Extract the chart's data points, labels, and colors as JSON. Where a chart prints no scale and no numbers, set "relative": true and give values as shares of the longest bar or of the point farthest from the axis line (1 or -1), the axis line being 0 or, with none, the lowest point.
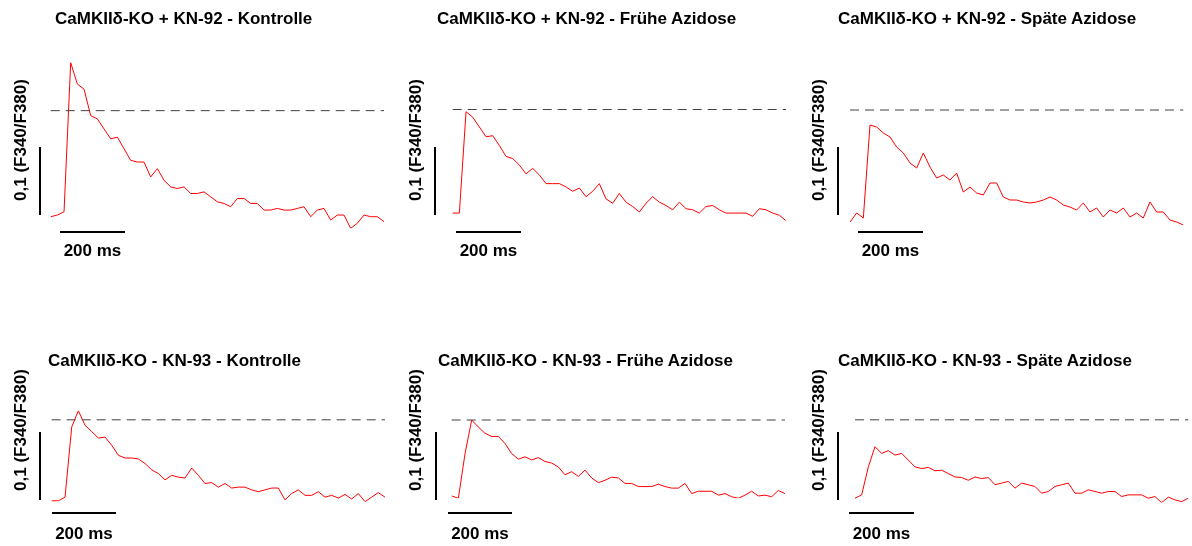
{
  "chart_data": [
    {
      "type": "line",
      "title": "CaMKIIδ-KO + KN-92 - Kontrolle",
      "xlabel": "200 ms",
      "ylabel": "0,1 (F340/F380)",
      "relative": true,
      "tick_labels": false,
      "categories": [
        null,
        null,
        null,
        null,
        null,
        null,
        null,
        null,
        null,
        null,
        null,
        null,
        null,
        null,
        null,
        null,
        null,
        null,
        null,
        null,
        null,
        null,
        null,
        null,
        null,
        null,
        null,
        null,
        null,
        null,
        null,
        null,
        null,
        null,
        null,
        null,
        null,
        null,
        null,
        null,
        null,
        null,
        null,
        null,
        null,
        null,
        null,
        null,
        null,
        null,
        null
      ],
      "series": [
        {
          "color": "#ff0000",
          "values": [
            0.07,
            0.08,
            0.1,
            1,
            0.87,
            0.84,
            0.68,
            0.66,
            0.6,
            0.54,
            0.55,
            0.48,
            0.41,
            0.4,
            0.4,
            0.31,
            0.36,
            0.29,
            0.25,
            0.24,
            0.25,
            0.21,
            0.21,
            0.22,
            0.19,
            0.16,
            0.15,
            0.13,
            0.18,
            0.18,
            0.15,
            0.15,
            0.11,
            0.11,
            0.12,
            0.11,
            0.11,
            0.12,
            0.13,
            0.07,
            0.11,
            0.12,
            0.05,
            0.08,
            0.08,
            0.0,
            0.03,
            0.08,
            0.07,
            0.07,
            0.04
          ]
        }
      ],
      "ref_lines": [
        {
          "axis": "y",
          "value": 0.71,
          "color": "#404040",
          "line_style": "dashed"
        }
      ]
    },
    {
      "type": "line",
      "title": "CaMKIIδ-KO + KN-92 - Frühe Azidose",
      "xlabel": "200 ms",
      "ylabel": "0,1 (F340/F380)",
      "relative": true,
      "tick_labels": false,
      "categories": [
        null,
        null,
        null,
        null,
        null,
        null,
        null,
        null,
        null,
        null,
        null,
        null,
        null,
        null,
        null,
        null,
        null,
        null,
        null,
        null,
        null,
        null,
        null,
        null,
        null,
        null,
        null,
        null,
        null,
        null,
        null,
        null,
        null,
        null,
        null,
        null,
        null,
        null,
        null,
        null,
        null,
        null,
        null,
        null,
        null,
        null,
        null,
        null,
        null,
        null,
        null
      ],
      "series": [
        {
          "color": "#ff0000",
          "values": [
            0.07,
            0.07,
            1,
            0.95,
            0.86,
            0.77,
            0.78,
            0.69,
            0.59,
            0.57,
            0.51,
            0.43,
            0.48,
            0.42,
            0.34,
            0.34,
            0.34,
            0.31,
            0.27,
            0.3,
            0.22,
            0.27,
            0.34,
            0.2,
            0.16,
            0.25,
            0.17,
            0.13,
            0.08,
            0.16,
            0.22,
            0.17,
            0.14,
            0.1,
            0.17,
            0.11,
            0.1,
            0.07,
            0.13,
            0.14,
            0.1,
            0.07,
            0.07,
            0.07,
            0.07,
            0.04,
            0.11,
            0.1,
            0.07,
            0.05,
            0.0
          ]
        }
      ],
      "ref_lines": [
        {
          "axis": "y",
          "value": 1.02,
          "color": "#404040",
          "line_style": "dashed"
        }
      ]
    },
    {
      "type": "line",
      "title": "CaMKIIδ-KO + KN-92 - Späte Azidose",
      "xlabel": "200 ms",
      "ylabel": "0,1 (F340/F380)",
      "relative": true,
      "tick_labels": false,
      "categories": [
        null,
        null,
        null,
        null,
        null,
        null,
        null,
        null,
        null,
        null,
        null,
        null,
        null,
        null,
        null,
        null,
        null,
        null,
        null,
        null,
        null,
        null,
        null,
        null,
        null,
        null,
        null,
        null,
        null,
        null,
        null,
        null,
        null,
        null,
        null,
        null,
        null,
        null,
        null,
        null,
        null,
        null,
        null,
        null,
        null,
        null,
        null,
        null,
        null,
        null,
        null
      ],
      "series": [
        {
          "color": "#ff0000",
          "values": [
            0.03,
            0.12,
            0.07,
            1,
            0.98,
            0.92,
            0.88,
            0.78,
            0.72,
            0.62,
            0.57,
            0.72,
            0.58,
            0.47,
            0.5,
            0.45,
            0.52,
            0.33,
            0.38,
            0.32,
            0.3,
            0.42,
            0.42,
            0.28,
            0.25,
            0.25,
            0.23,
            0.22,
            0.23,
            0.25,
            0.28,
            0.25,
            0.2,
            0.18,
            0.15,
            0.22,
            0.13,
            0.17,
            0.08,
            0.15,
            0.12,
            0.17,
            0.08,
            0.12,
            0.07,
            0.23,
            0.13,
            0.13,
            0.05,
            0.03,
            0.0
          ]
        }
      ],
      "ref_lines": [
        {
          "axis": "y",
          "value": 1.15,
          "color": "#404040",
          "line_style": "dashed"
        }
      ]
    },
    {
      "type": "line",
      "title": "CaMKIIδ-KO - KN-93 - Kontrolle",
      "xlabel": "200 ms",
      "ylabel": "0,1 (F340/F380)",
      "relative": true,
      "tick_labels": false,
      "categories": [
        null,
        null,
        null,
        null,
        null,
        null,
        null,
        null,
        null,
        null,
        null,
        null,
        null,
        null,
        null,
        null,
        null,
        null,
        null,
        null,
        null,
        null,
        null,
        null,
        null,
        null,
        null,
        null,
        null,
        null,
        null,
        null,
        null,
        null,
        null,
        null,
        null,
        null,
        null,
        null,
        null,
        null,
        null,
        null,
        null,
        null,
        null,
        null,
        null,
        null,
        null
      ],
      "series": [
        {
          "color": "#ff0000",
          "values": [
            0.01,
            0.01,
            0.05,
            0.82,
            1,
            0.84,
            0.77,
            0.7,
            0.71,
            0.62,
            0.51,
            0.48,
            0.48,
            0.47,
            0.42,
            0.35,
            0.31,
            0.24,
            0.29,
            0.27,
            0.26,
            0.37,
            0.29,
            0.2,
            0.21,
            0.16,
            0.2,
            0.15,
            0.16,
            0.16,
            0.13,
            0.11,
            0.13,
            0.15,
            0.15,
            0.02,
            0.09,
            0.13,
            0.07,
            0.07,
            0.11,
            0.05,
            0.07,
            0.04,
            0.08,
            0.03,
            0.09,
            0.0,
            0.05,
            0.1,
            0.05
          ]
        }
      ],
      "ref_lines": [
        {
          "axis": "y",
          "value": 0.9,
          "color": "#404040",
          "line_style": "dashed"
        }
      ]
    },
    {
      "type": "line",
      "title": "CaMKIIδ-KO - KN-93 - Frühe Azidose",
      "xlabel": "200 ms",
      "ylabel": "0,1 (F340/F380)",
      "relative": true,
      "tick_labels": false,
      "categories": [
        null,
        null,
        null,
        null,
        null,
        null,
        null,
        null,
        null,
        null,
        null,
        null,
        null,
        null,
        null,
        null,
        null,
        null,
        null,
        null,
        null,
        null,
        null,
        null,
        null,
        null,
        null,
        null,
        null,
        null,
        null,
        null,
        null,
        null,
        null,
        null,
        null,
        null,
        null,
        null,
        null,
        null,
        null,
        null,
        null,
        null,
        null,
        null,
        null,
        null,
        null
      ],
      "series": [
        {
          "color": "#ff0000",
          "values": [
            0.03,
            0.0,
            0.57,
            1,
            0.91,
            0.83,
            0.79,
            0.79,
            0.7,
            0.57,
            0.5,
            0.53,
            0.49,
            0.52,
            0.47,
            0.45,
            0.4,
            0.3,
            0.34,
            0.28,
            0.36,
            0.26,
            0.2,
            0.23,
            0.27,
            0.26,
            0.19,
            0.19,
            0.15,
            0.15,
            0.15,
            0.18,
            0.15,
            0.13,
            0.13,
            0.19,
            0.06,
            0.09,
            0.09,
            0.09,
            0.04,
            0.06,
            0.02,
            0.0,
            0.04,
            0.09,
            0.03,
            0.04,
            0.02,
            0.1,
            0.06
          ]
        }
      ],
      "ref_lines": [
        {
          "axis": "y",
          "value": 1.0,
          "color": "#404040",
          "line_style": "dashed"
        }
      ]
    },
    {
      "type": "line",
      "title": "CaMKIIδ-KO - KN-93 - Späte Azidose",
      "xlabel": "200 ms",
      "ylabel": "0,1 (F340/F380)",
      "relative": true,
      "tick_labels": false,
      "categories": [
        null,
        null,
        null,
        null,
        null,
        null,
        null,
        null,
        null,
        null,
        null,
        null,
        null,
        null,
        null,
        null,
        null,
        null,
        null,
        null,
        null,
        null,
        null,
        null,
        null,
        null,
        null,
        null,
        null,
        null,
        null,
        null,
        null,
        null,
        null,
        null,
        null,
        null,
        null,
        null,
        null,
        null,
        null,
        null,
        null,
        null,
        null,
        null,
        null,
        null,
        null
      ],
      "series": [
        {
          "color": "#ff0000",
          "values": [
            0.08,
            0.14,
            0.64,
            1,
            0.88,
            0.93,
            0.85,
            0.88,
            0.76,
            0.64,
            0.61,
            0.63,
            0.57,
            0.58,
            0.52,
            0.46,
            0.45,
            0.4,
            0.46,
            0.43,
            0.45,
            0.32,
            0.35,
            0.38,
            0.26,
            0.35,
            0.32,
            0.29,
            0.17,
            0.2,
            0.29,
            0.32,
            0.35,
            0.17,
            0.17,
            0.23,
            0.2,
            0.17,
            0.2,
            0.2,
            0.11,
            0.14,
            0.14,
            0.14,
            0.08,
            0.11,
            0.0,
            0.1,
            0.05,
            0.02,
            0.08
          ]
        }
      ],
      "ref_lines": [
        {
          "axis": "y",
          "value": 1.48,
          "color": "#404040",
          "line_style": "dashed"
        }
      ]
    }
  ]
}
